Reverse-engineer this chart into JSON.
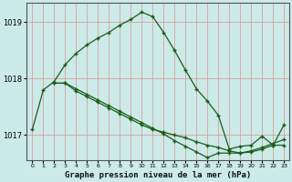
{
  "title": "Graphe pression niveau de la mer (hPa)",
  "bg_color": "#cceae8",
  "plot_bg_color": "#cceae8",
  "grid_color": "#d9a0a0",
  "line_color": "#1a5c1a",
  "spine_color": "#555555",
  "xlim": [
    -0.5,
    23.5
  ],
  "ylim": [
    1016.55,
    1019.35
  ],
  "yticks": [
    1017,
    1018,
    1019
  ],
  "ylabel_fontsize": 6.5,
  "xlabel_fontsize": 6.5,
  "xtick_labels": [
    "0",
    "1",
    "2",
    "3",
    "4",
    "5",
    "6",
    "7",
    "8",
    "9",
    "10",
    "11",
    "12",
    "13",
    "14",
    "15",
    "16",
    "17",
    "18",
    "19",
    "20",
    "21",
    "22",
    "23"
  ],
  "series1_x": [
    0,
    1,
    2,
    3,
    4,
    5,
    6,
    7,
    8,
    9,
    10,
    11,
    12,
    13,
    14,
    15,
    16,
    17,
    18,
    19,
    20,
    21,
    22,
    23
  ],
  "series1_y": [
    1017.1,
    1017.8,
    1017.95,
    1018.25,
    1018.45,
    1018.6,
    1018.72,
    1018.82,
    1018.95,
    1019.05,
    1019.18,
    1019.1,
    1018.82,
    1018.5,
    1018.15,
    1017.82,
    1017.6,
    1017.35,
    1016.75,
    1016.8,
    1016.82,
    1016.98,
    1016.82,
    1016.82
  ],
  "series2_x": [
    2,
    3,
    4,
    5,
    6,
    7,
    8,
    9,
    10,
    11,
    12,
    13,
    14,
    15,
    16,
    17,
    18,
    19,
    20,
    21,
    22,
    23
  ],
  "series2_y": [
    1017.92,
    1017.92,
    1017.78,
    1017.68,
    1017.58,
    1017.48,
    1017.38,
    1017.28,
    1017.18,
    1017.1,
    1017.05,
    1017.0,
    1016.95,
    1016.88,
    1016.82,
    1016.78,
    1016.72,
    1016.68,
    1016.72,
    1016.78,
    1016.85,
    1016.92
  ],
  "series3_x": [
    2,
    3,
    4,
    5,
    6,
    7,
    8,
    9,
    10,
    11,
    12,
    13,
    14,
    15,
    16,
    17,
    18,
    19,
    20,
    21,
    22,
    23
  ],
  "series3_y": [
    1017.92,
    1017.92,
    1017.82,
    1017.72,
    1017.62,
    1017.52,
    1017.42,
    1017.32,
    1017.22,
    1017.12,
    1017.02,
    1016.9,
    1016.8,
    1016.7,
    1016.6,
    1016.68,
    1016.68,
    1016.68,
    1016.7,
    1016.75,
    1016.82,
    1017.18
  ]
}
